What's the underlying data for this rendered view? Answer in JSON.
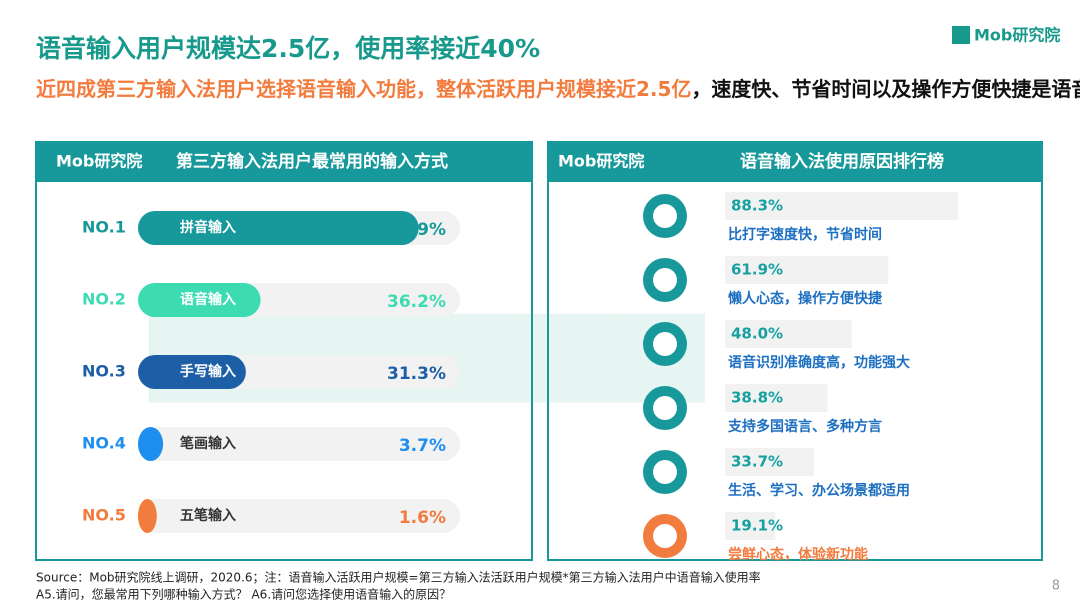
{
  "header": {
    "title": "语音输入用户规模达2.5亿，使用率接近40%",
    "subtitle_highlight": "近四成第三方输入法用户选择语音输入功能，整体活跃用户规模接近2.5亿",
    "subtitle_rest": "，速度快、节省时间以及操作方便快捷是语音输入法吸引用户的首要原因",
    "logo": "Mob研究院"
  },
  "chart_data": [
    {
      "type": "bar",
      "title": "第三方输入法用户最常用的输入方式",
      "logo": "Mob研究院",
      "ranks": [
        "NO.1",
        "NO.2",
        "NO.3",
        "NO.4",
        "NO.5"
      ],
      "categories": [
        "拼音输入",
        "语音输入",
        "手写输入",
        "笔画输入",
        "五笔输入"
      ],
      "values": [
        88.9,
        36.2,
        31.3,
        3.7,
        1.6
      ],
      "value_labels": [
        "88.9%",
        "36.2%",
        "31.3%",
        "3.7%",
        "1.6%"
      ],
      "colors": [
        "#17989a",
        "#3ddbb2",
        "#1d5fa6",
        "#1e8ff0",
        "#f27b3e"
      ],
      "xlim": [
        0,
        100
      ]
    },
    {
      "type": "ranking",
      "title": "语音输入法使用原因排行榜",
      "logo": "Mob研究院",
      "categories": [
        "比打字速度快，节省时间",
        "懒人心态，操作方便快捷",
        "语音识别准确度高，功能强大",
        "支持多国语言、多种方言",
        "生活、学习、办公场景都适用",
        "尝鲜心态，体验新功能"
      ],
      "values": [
        88.3,
        61.9,
        48.0,
        38.8,
        33.7,
        19.1
      ],
      "value_labels": [
        "88.3%",
        "61.9%",
        "48.0%",
        "38.8%",
        "33.7%",
        "19.1%"
      ],
      "colors": [
        "#1d6fc2",
        "#1d6fc2",
        "#1d6fc2",
        "#1d6fc2",
        "#1d6fc2",
        "#f27b3e"
      ],
      "xlim": [
        0,
        100
      ]
    }
  ],
  "footer": {
    "source": "Source：Mob研究院线上调研，2020.6；注：语音输入活跃用户规模=第三方输入法活跃用户规模*第三方输入法用户中语音输入使用率",
    "questions": "A5.请问，您最常用下列哪种输入方式？ A6.请问您选择使用语音输入的原因？",
    "page": "8"
  }
}
